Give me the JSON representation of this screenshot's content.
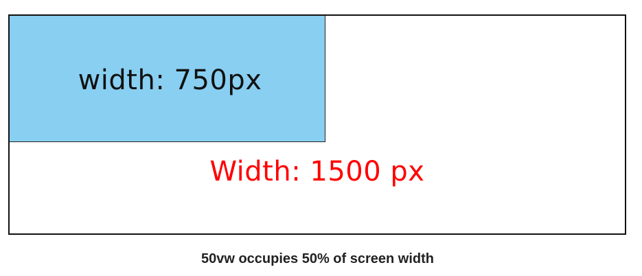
{
  "diagram": {
    "inner_label": "width: 750px",
    "outer_label": "Width: 1500 px",
    "caption": "50vw occupies 50% of screen width"
  },
  "colors": {
    "inner_box_fill": "#88cff1",
    "outer_label_text": "#ff0000",
    "border": "#111111",
    "background": "#ffffff"
  }
}
